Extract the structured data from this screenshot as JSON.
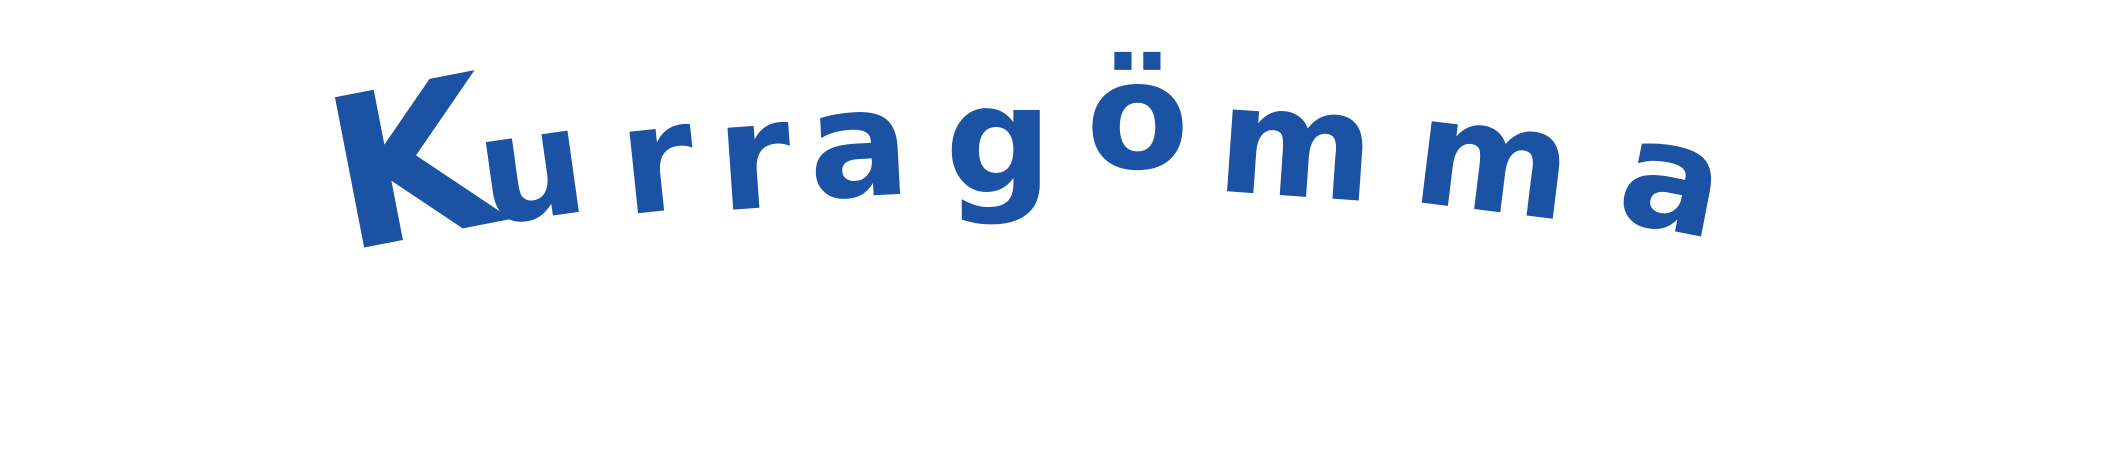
{
  "logo": {
    "text": "Kurragömma",
    "letters": [
      "K",
      "u",
      "r",
      "r",
      "a",
      "g",
      "ö",
      "m",
      "m",
      "a"
    ],
    "color": "#1b52a3",
    "background": "#ffffff"
  }
}
